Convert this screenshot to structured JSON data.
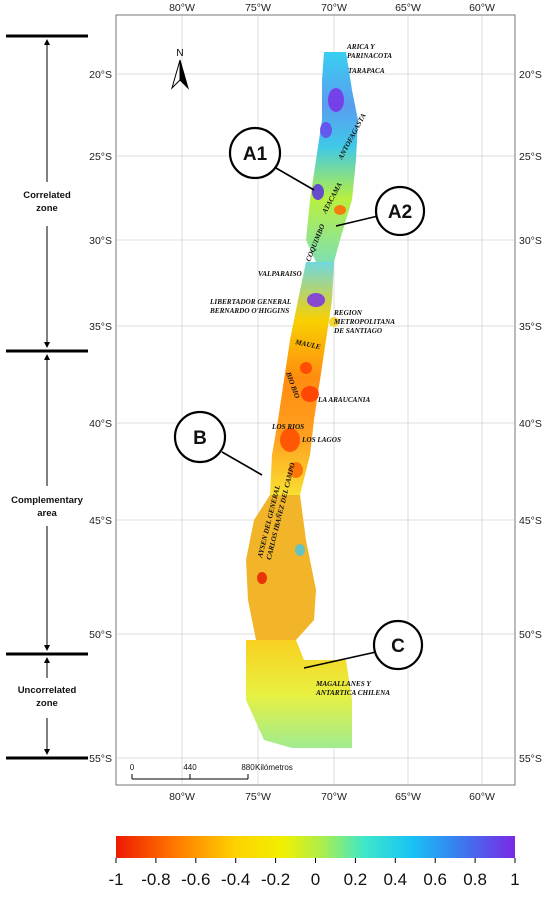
{
  "map": {
    "lon_ticks_top": [
      "80°W",
      "75°W",
      "70°W",
      "65°W",
      "60°W"
    ],
    "lon_ticks_bottom": [
      "80°W",
      "75°W",
      "70°W",
      "65°W",
      "60°W"
    ],
    "lat_ticks_left": [
      "20°S",
      "25°S",
      "30°S",
      "35°S",
      "40°S",
      "45°S",
      "50°S",
      "55°S"
    ],
    "lat_ticks_right": [
      "20°S",
      "25°S",
      "30°S",
      "35°S",
      "40°S",
      "45°S",
      "50°S",
      "55°S"
    ],
    "north_label": "N",
    "scalebar": {
      "ticks": [
        "0",
        "440",
        "880"
      ],
      "unit": "Kilómetros"
    }
  },
  "regions": [
    "ARICA Y PARINACOTA",
    "TARAPACA",
    "ANTOFAGASTA",
    "ATACAMA",
    "COQUIMBO",
    "VALPARAISO",
    "LIBERTADOR GENERAL BERNARDO O'HIGGINS",
    "REGION METROPOLITANA DE SANTIAGO",
    "MAULE",
    "BIO BIO",
    "LA ARAUCANIA",
    "LOS RIOS",
    "LOS LAGOS",
    "AYSEN DEL GENERAL CARLOS IBAÑEZ DEL CAMPO",
    "MAGALLANES Y ANTARTICA CHILENA"
  ],
  "zones": {
    "correlated": "Correlated zone",
    "complementary": "Complementary area",
    "uncorrelated": "Uncorrelated zone"
  },
  "callouts": [
    "A1",
    "A2",
    "B",
    "C"
  ],
  "colorbar": {
    "min": -1,
    "max": 1,
    "ticks": [
      "-1",
      "-0.8",
      "-0.6",
      "-0.4",
      "-0.2",
      "0",
      "0.2",
      "0.4",
      "0.6",
      "0.8",
      "1"
    ],
    "colors": [
      "#ee2200",
      "#ff8a00",
      "#f5e000",
      "#c8ec3a",
      "#5ee8b0",
      "#1ec8f0",
      "#3a8cf0",
      "#7a30e8"
    ]
  }
}
